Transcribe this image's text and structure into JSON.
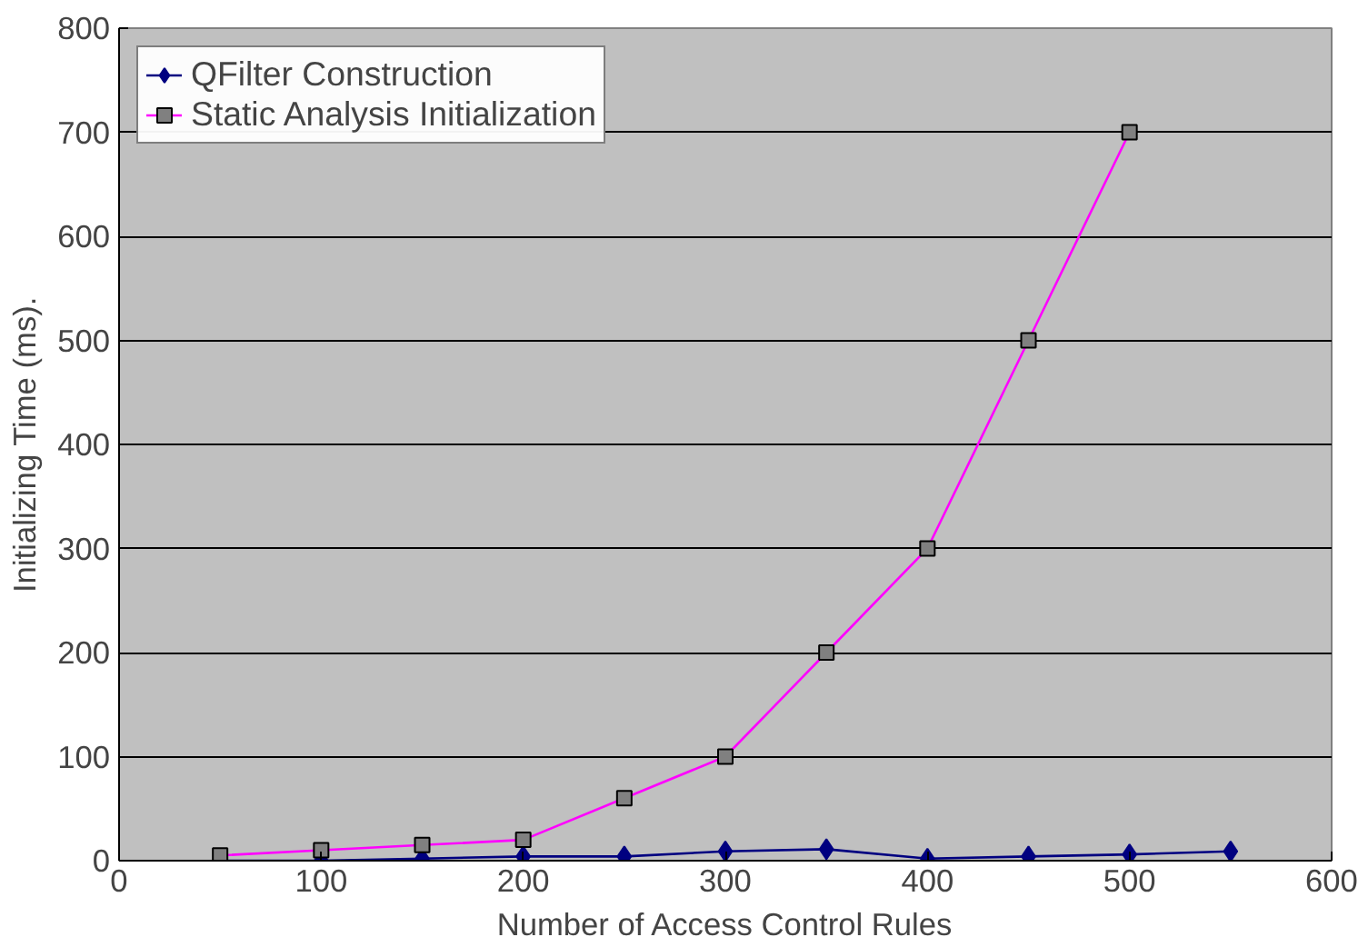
{
  "chart_data": {
    "type": "line",
    "xlabel": "Number of Access Control Rules",
    "ylabel": "Initializing Time (ms).",
    "xlim": [
      0,
      600
    ],
    "xticks": [
      0,
      100,
      200,
      300,
      400,
      500,
      600
    ],
    "ylim": [
      0,
      800
    ],
    "yticks": [
      0,
      100,
      200,
      300,
      400,
      500,
      600,
      700,
      800
    ],
    "grid": "y",
    "legend": "top left",
    "series": [
      {
        "name": "QFilter Construction",
        "color": "#000080",
        "marker": "diamond",
        "x": [
          50,
          100,
          150,
          200,
          250,
          300,
          350,
          400,
          450,
          500,
          550
        ],
        "values": [
          0,
          0,
          2,
          4,
          4,
          9,
          11,
          2,
          4,
          6,
          9
        ]
      },
      {
        "name": "Static Analysis Initialization",
        "color": "#ff00ff",
        "marker": "square",
        "x": [
          50,
          100,
          150,
          200,
          250,
          300,
          350,
          400,
          450,
          500
        ],
        "values": [
          5,
          10,
          15,
          20,
          60,
          100,
          200,
          300,
          500,
          700
        ]
      }
    ]
  }
}
